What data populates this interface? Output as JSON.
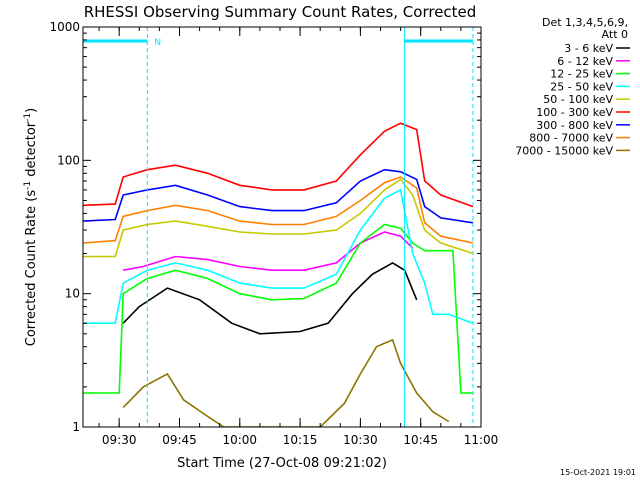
{
  "chart_data": {
    "type": "line",
    "title": "RHESSI Observing Summary Count Rates, Corrected",
    "xlabel": "Start Time (27-Oct-08 09:21:02)",
    "ylabel": "Corrected Count Rate (s",
    "ylabel_sup": "-1",
    "ylabel_mid": " detector",
    "ylabel_sup2": "-1",
    "ylabel_end": ")",
    "yscale": "log",
    "ylim": [
      1,
      1000
    ],
    "xlim": [
      "09:21",
      "11:00"
    ],
    "xticks": [
      "09:30",
      "09:45",
      "10:00",
      "10:15",
      "10:30",
      "10:45",
      "11:00"
    ],
    "yticks": [
      "1",
      "10",
      "100",
      "1000"
    ],
    "legend_header": [
      "Det 1,3,4,5,6,9,",
      "Att 0"
    ],
    "legend_position": "right",
    "timestamp": "15-Oct-2021 19:01",
    "flag_label": "N",
    "night_markers": [
      "09:37",
      "10:41",
      "10:58"
    ],
    "series": [
      {
        "name": "3 - 6 keV",
        "color": "#000000",
        "points": [
          [
            "09:21",
            null
          ],
          [
            "09:31",
            6
          ],
          [
            "09:35",
            8
          ],
          [
            "09:42",
            11
          ],
          [
            "09:50",
            9
          ],
          [
            "09:58",
            6
          ],
          [
            "10:05",
            5
          ],
          [
            "10:15",
            5.2
          ],
          [
            "10:22",
            6
          ],
          [
            "10:28",
            10
          ],
          [
            "10:33",
            14
          ],
          [
            "10:38",
            17
          ],
          [
            "10:41",
            15
          ],
          [
            "10:44",
            9
          ]
        ]
      },
      {
        "name": "6 - 12 keV",
        "color": "#ff00ff",
        "points": [
          [
            "09:31",
            15
          ],
          [
            "09:36",
            16
          ],
          [
            "09:44",
            19
          ],
          [
            "09:52",
            18
          ],
          [
            "10:00",
            16
          ],
          [
            "10:08",
            15
          ],
          [
            "10:16",
            15
          ],
          [
            "10:24",
            17
          ],
          [
            "10:30",
            24
          ],
          [
            "10:36",
            29
          ],
          [
            "10:40",
            27
          ],
          [
            "10:43",
            22
          ]
        ]
      },
      {
        "name": "12 - 25 keV",
        "color": "#00ff00",
        "points": [
          [
            "09:21",
            1.8
          ],
          [
            "09:30",
            1.8
          ],
          [
            "09:31",
            10
          ],
          [
            "09:37",
            13
          ],
          [
            "09:44",
            15
          ],
          [
            "09:52",
            13
          ],
          [
            "10:00",
            10
          ],
          [
            "10:08",
            9
          ],
          [
            "10:16",
            9.2
          ],
          [
            "10:24",
            12
          ],
          [
            "10:30",
            24
          ],
          [
            "10:36",
            33
          ],
          [
            "10:40",
            31
          ],
          [
            "10:43",
            24
          ],
          [
            "10:46",
            21
          ],
          [
            "10:50",
            21
          ],
          [
            "10:53",
            21
          ],
          [
            "10:55",
            1.8
          ],
          [
            "10:58",
            1.8
          ]
        ]
      },
      {
        "name": "25 - 50 keV",
        "color": "#00ffff",
        "points": [
          [
            "09:21",
            6
          ],
          [
            "09:29",
            6
          ],
          [
            "09:31",
            12
          ],
          [
            "09:37",
            15
          ],
          [
            "09:44",
            17
          ],
          [
            "09:52",
            15
          ],
          [
            "10:00",
            12
          ],
          [
            "10:08",
            11
          ],
          [
            "10:16",
            11
          ],
          [
            "10:24",
            14
          ],
          [
            "10:30",
            30
          ],
          [
            "10:36",
            52
          ],
          [
            "10:40",
            60
          ],
          [
            "10:43",
            20
          ],
          [
            "10:46",
            12
          ],
          [
            "10:48",
            7
          ],
          [
            "10:52",
            7
          ],
          [
            "10:58",
            6
          ]
        ]
      },
      {
        "name": "50 - 100 keV",
        "color": "#c8c800",
        "points": [
          [
            "09:21",
            19
          ],
          [
            "09:29",
            19
          ],
          [
            "09:31",
            30
          ],
          [
            "09:37",
            33
          ],
          [
            "09:44",
            35
          ],
          [
            "09:52",
            32
          ],
          [
            "10:00",
            29
          ],
          [
            "10:08",
            28
          ],
          [
            "10:16",
            28
          ],
          [
            "10:24",
            30
          ],
          [
            "10:30",
            40
          ],
          [
            "10:36",
            60
          ],
          [
            "10:40",
            72
          ],
          [
            "10:43",
            55
          ],
          [
            "10:46",
            30
          ],
          [
            "10:50",
            24
          ],
          [
            "10:58",
            20
          ]
        ]
      },
      {
        "name": "100 - 300 keV",
        "color": "#ff0000",
        "points": [
          [
            "09:21",
            46
          ],
          [
            "09:29",
            47
          ],
          [
            "09:31",
            75
          ],
          [
            "09:37",
            85
          ],
          [
            "09:44",
            92
          ],
          [
            "09:52",
            80
          ],
          [
            "10:00",
            65
          ],
          [
            "10:08",
            60
          ],
          [
            "10:16",
            60
          ],
          [
            "10:24",
            70
          ],
          [
            "10:30",
            110
          ],
          [
            "10:36",
            165
          ],
          [
            "10:40",
            190
          ],
          [
            "10:44",
            170
          ],
          [
            "10:46",
            70
          ],
          [
            "10:50",
            55
          ],
          [
            "10:58",
            45
          ]
        ]
      },
      {
        "name": "300 - 800 keV",
        "color": "#0000ff",
        "points": [
          [
            "09:21",
            35
          ],
          [
            "09:29",
            36
          ],
          [
            "09:31",
            55
          ],
          [
            "09:37",
            60
          ],
          [
            "09:44",
            65
          ],
          [
            "09:52",
            55
          ],
          [
            "10:00",
            45
          ],
          [
            "10:08",
            42
          ],
          [
            "10:16",
            42
          ],
          [
            "10:24",
            48
          ],
          [
            "10:30",
            70
          ],
          [
            "10:36",
            85
          ],
          [
            "10:40",
            82
          ],
          [
            "10:44",
            72
          ],
          [
            "10:46",
            45
          ],
          [
            "10:50",
            37
          ],
          [
            "10:58",
            34
          ]
        ]
      },
      {
        "name": "800 - 7000 keV",
        "color": "#ff8000",
        "points": [
          [
            "09:21",
            24
          ],
          [
            "09:29",
            25
          ],
          [
            "09:31",
            38
          ],
          [
            "09:37",
            42
          ],
          [
            "09:44",
            46
          ],
          [
            "09:52",
            42
          ],
          [
            "10:00",
            35
          ],
          [
            "10:08",
            33
          ],
          [
            "10:16",
            33
          ],
          [
            "10:24",
            38
          ],
          [
            "10:30",
            50
          ],
          [
            "10:36",
            68
          ],
          [
            "10:40",
            75
          ],
          [
            "10:44",
            62
          ],
          [
            "10:46",
            34
          ],
          [
            "10:50",
            27
          ],
          [
            "10:58",
            24
          ]
        ]
      },
      {
        "name": "7000 - 15000 keV",
        "color": "#8b7500",
        "points": [
          [
            "09:21",
            null
          ],
          [
            "09:31",
            1.4
          ],
          [
            "09:36",
            2
          ],
          [
            "09:42",
            2.5
          ],
          [
            "09:46",
            1.6
          ],
          [
            "09:52",
            1.2
          ],
          [
            "09:56",
            1
          ],
          [
            "10:20",
            1
          ],
          [
            "10:26",
            1.5
          ],
          [
            "10:30",
            2.5
          ],
          [
            "10:34",
            4
          ],
          [
            "10:38",
            4.5
          ],
          [
            "10:40",
            3
          ],
          [
            "10:44",
            1.8
          ],
          [
            "10:48",
            1.3
          ],
          [
            "10:52",
            1.1
          ]
        ]
      }
    ]
  }
}
